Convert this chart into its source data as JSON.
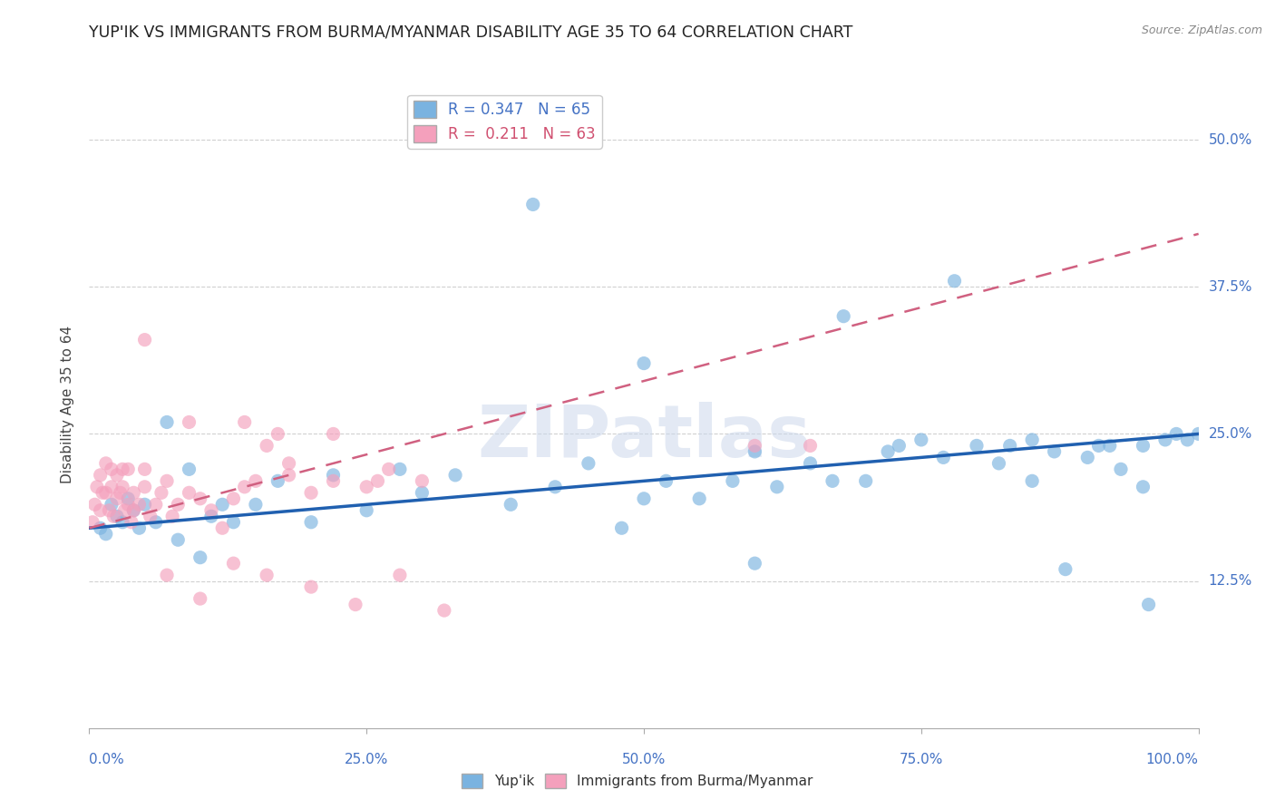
{
  "title": "YUP'IK VS IMMIGRANTS FROM BURMA/MYANMAR DISABILITY AGE 35 TO 64 CORRELATION CHART",
  "source_text": "Source: ZipAtlas.com",
  "ylabel": "Disability Age 35 to 64",
  "xlim": [
    0,
    100
  ],
  "ylim": [
    0,
    55
  ],
  "ytick_vals": [
    12.5,
    25.0,
    37.5,
    50.0
  ],
  "ytick_labels": [
    "12.5%",
    "25.0%",
    "37.5%",
    "50.0%"
  ],
  "xtick_vals": [
    0,
    25,
    50,
    75,
    100
  ],
  "xtick_labels": [
    "0.0%",
    "25.0%",
    "50.0%",
    "75.0%",
    "100.0%"
  ],
  "watermark": "ZIPatlas",
  "blue_color": "#7ab3e0",
  "blue_line_color": "#2060b0",
  "pink_color": "#f4a0bc",
  "pink_line_color": "#d06080",
  "tick_color": "#4472c4",
  "grid_color": "#d0d0d0",
  "scatter_alpha": 0.65,
  "scatter_size": 120,
  "background_color": "#ffffff",
  "blue_x": [
    1.0,
    1.5,
    2.0,
    2.5,
    3.0,
    3.5,
    4.0,
    4.5,
    5.0,
    6.0,
    7.0,
    8.0,
    9.0,
    10.0,
    11.0,
    12.0,
    13.0,
    15.0,
    17.0,
    20.0,
    22.0,
    25.0,
    28.0,
    30.0,
    33.0,
    38.0,
    42.0,
    45.0,
    48.0,
    50.0,
    52.0,
    55.0,
    58.0,
    60.0,
    62.0,
    65.0,
    67.0,
    68.0,
    70.0,
    72.0,
    73.0,
    75.0,
    77.0,
    78.0,
    80.0,
    82.0,
    83.0,
    85.0,
    87.0,
    88.0,
    90.0,
    91.0,
    92.0,
    93.0,
    95.0,
    95.5,
    97.0,
    98.0,
    99.0,
    100.0,
    40.0,
    50.0,
    60.0,
    85.0,
    95.0
  ],
  "blue_y": [
    17.0,
    16.5,
    19.0,
    18.0,
    17.5,
    19.5,
    18.5,
    17.0,
    19.0,
    17.5,
    26.0,
    16.0,
    22.0,
    14.5,
    18.0,
    19.0,
    17.5,
    19.0,
    21.0,
    17.5,
    21.5,
    18.5,
    22.0,
    20.0,
    21.5,
    19.0,
    20.5,
    22.5,
    17.0,
    19.5,
    21.0,
    19.5,
    21.0,
    23.5,
    20.5,
    22.5,
    21.0,
    35.0,
    21.0,
    23.5,
    24.0,
    24.5,
    23.0,
    38.0,
    24.0,
    22.5,
    24.0,
    24.5,
    23.5,
    13.5,
    23.0,
    24.0,
    24.0,
    22.0,
    24.0,
    10.5,
    24.5,
    25.0,
    24.5,
    25.0,
    44.5,
    31.0,
    14.0,
    21.0,
    20.5
  ],
  "pink_x": [
    0.3,
    0.5,
    0.7,
    1.0,
    1.0,
    1.2,
    1.5,
    1.5,
    1.8,
    2.0,
    2.0,
    2.2,
    2.5,
    2.5,
    2.8,
    3.0,
    3.0,
    3.2,
    3.5,
    3.5,
    3.8,
    4.0,
    4.0,
    4.5,
    5.0,
    5.0,
    5.5,
    6.0,
    6.5,
    7.0,
    7.5,
    8.0,
    9.0,
    10.0,
    11.0,
    12.0,
    13.0,
    14.0,
    15.0,
    16.0,
    17.0,
    18.0,
    20.0,
    22.0,
    25.0,
    27.0,
    30.0,
    5.0,
    9.0,
    14.0,
    18.0,
    22.0,
    26.0,
    7.0,
    10.0,
    13.0,
    16.0,
    20.0,
    24.0,
    28.0,
    32.0,
    60.0,
    65.0
  ],
  "pink_y": [
    17.5,
    19.0,
    20.5,
    21.5,
    18.5,
    20.0,
    22.5,
    20.0,
    18.5,
    20.5,
    22.0,
    18.0,
    19.5,
    21.5,
    20.0,
    20.5,
    22.0,
    18.5,
    19.0,
    22.0,
    17.5,
    18.5,
    20.0,
    19.0,
    20.5,
    22.0,
    18.0,
    19.0,
    20.0,
    21.0,
    18.0,
    19.0,
    20.0,
    19.5,
    18.5,
    17.0,
    19.5,
    20.5,
    21.0,
    24.0,
    25.0,
    21.5,
    20.0,
    21.0,
    20.5,
    22.0,
    21.0,
    33.0,
    26.0,
    26.0,
    22.5,
    25.0,
    21.0,
    13.0,
    11.0,
    14.0,
    13.0,
    12.0,
    10.5,
    13.0,
    10.0,
    24.0,
    24.0
  ],
  "blue_line_x": [
    0,
    100
  ],
  "blue_line_y": [
    17.0,
    25.0
  ],
  "pink_line_x": [
    0,
    100
  ],
  "pink_line_y": [
    17.0,
    42.0
  ]
}
